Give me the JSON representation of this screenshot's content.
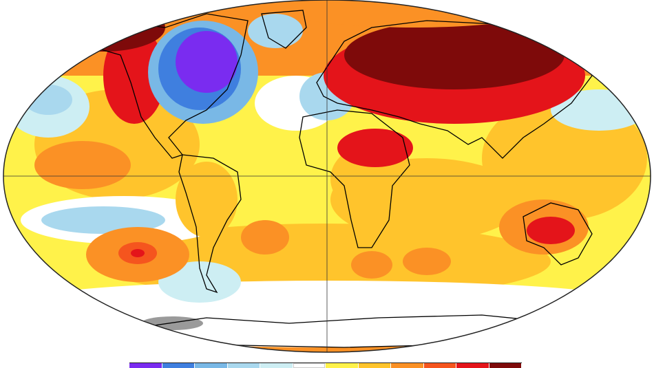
{
  "map": {
    "projection": "robinson",
    "grid": true,
    "missing_color": "#9a9a9a",
    "colors": {
      "white": "#ffffff",
      "pale_cyan": "#cdeef3",
      "light_blue": "#a9d8ee",
      "blue": "#79b8e6",
      "deep_blue": "#3f7fdf",
      "violet": "#7a2cf0",
      "yellow": "#fff24a",
      "gold": "#ffc42c",
      "orange": "#fb9125",
      "orange_red": "#f5551e",
      "red": "#e4141a",
      "dark_red": "#7e0a0a"
    }
  },
  "legend": {
    "colors": [
      "#7a2cf0",
      "#3f7fdf",
      "#79b8e6",
      "#a9d8ee",
      "#cdeef3",
      "#ffffff",
      "#fff24a",
      "#ffc42c",
      "#fb9125",
      "#f5551e",
      "#e4141a",
      "#7e0a0a"
    ]
  }
}
